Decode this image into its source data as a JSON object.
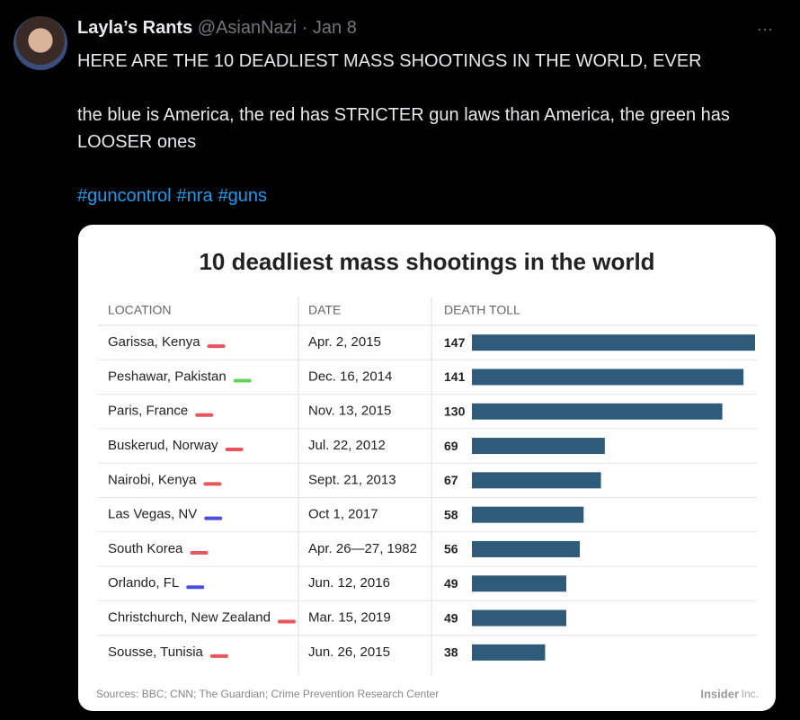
{
  "tweet": {
    "author": "Layla’s Rants",
    "handle": "@AsianNazi",
    "separator": "·",
    "date": "Jan 8",
    "more": "···",
    "paragraphs": [
      "HERE ARE THE 10 DEADLIEST MASS SHOOTINGS IN THE WORLD, EVER",
      "the blue is America, the red has STRICTER gun laws than America, the green has LOOSER ones"
    ],
    "hashtags": [
      "#guncontrol",
      "#nra",
      "#guns"
    ]
  },
  "image": {
    "title": "10 deadliest mass shootings in the world",
    "columns": [
      "LOCATION",
      "DATE",
      "DEATH TOLL"
    ],
    "bar_color": "#2e5b7a",
    "rows": [
      {
        "location": "Garissa, Kenya",
        "date": "Apr. 2, 2015",
        "death_toll": 147,
        "marker": "#e8555a"
      },
      {
        "location": "Peshawar, Pakistan",
        "date": "Dec. 16, 2014",
        "death_toll": 141,
        "marker": "#5fd35a"
      },
      {
        "location": "Paris, France",
        "date": "Nov. 13, 2015",
        "death_toll": 130,
        "marker": "#e8555a"
      },
      {
        "location": "Buskerud, Norway",
        "date": "Jul. 22, 2012",
        "death_toll": 69,
        "marker": "#e8555a"
      },
      {
        "location": "Nairobi, Kenya",
        "date": "Sept. 21, 2013",
        "death_toll": 67,
        "marker": "#e8555a"
      },
      {
        "location": "Las Vegas, NV",
        "date": "Oct 1, 2017",
        "death_toll": 58,
        "marker": "#4a4fe0"
      },
      {
        "location": "South Korea",
        "date": "Apr. 26—27, 1982",
        "death_toll": 56,
        "marker": "#e8555a"
      },
      {
        "location": "Orlando, FL",
        "date": "Jun. 12, 2016",
        "death_toll": 49,
        "marker": "#4a4fe0"
      },
      {
        "location": "Christchurch, New Zealand",
        "date": "Mar. 15, 2019",
        "death_toll": 49,
        "marker": "#e8555a"
      },
      {
        "location": "Sousse, Tunisia",
        "date": "Jun. 26, 2015",
        "death_toll": 38,
        "marker": "#e8555a"
      }
    ],
    "source": "Sources: BBC; CNN; The Guardian; Crime Prevention Research Center",
    "brand": "Insider",
    "brand_suffix": "Inc."
  }
}
